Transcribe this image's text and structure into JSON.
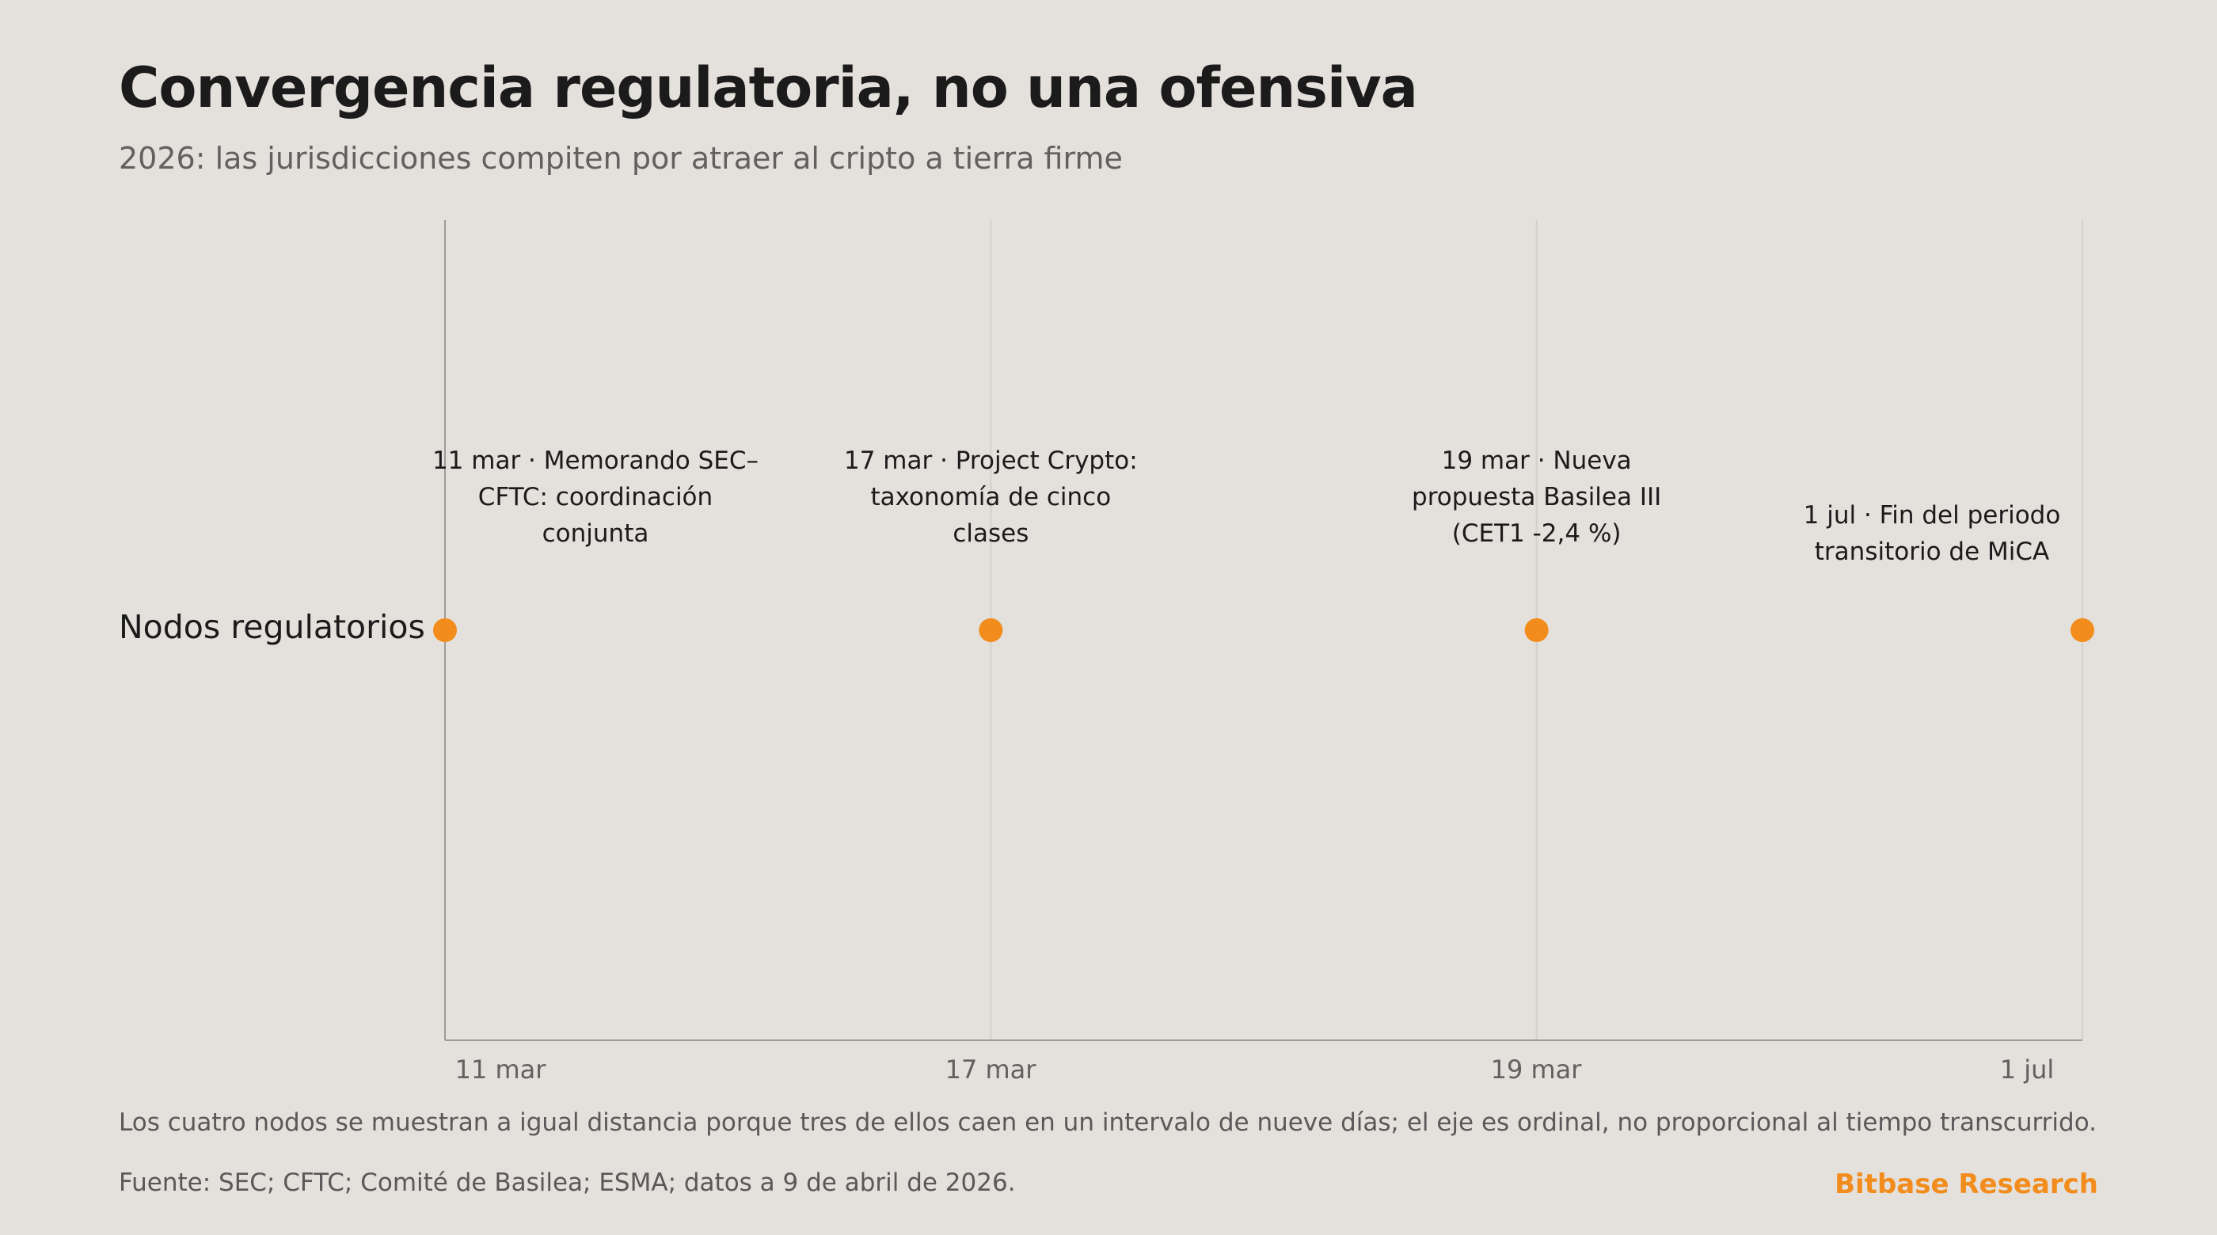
{
  "title": "Convergencia regulatoria, no una ofensiva",
  "subtitle": "2026: las jurisdicciones compiten por atraer al cripto a tierra firme",
  "note": "Los cuatro nodos se muestran a igual distancia porque tres de ellos caen en un intervalo de nueve días; el eje es ordinal, no proporcional al tiempo transcurrido.",
  "source": "Fuente: SEC; CFTC; Comité de Basilea; ESMA; datos a 9 de abril de 2026.",
  "brand": "Bitbase Research",
  "colors": {
    "accent": "#f28c1c",
    "background": "#e4e0db",
    "gridline": "#d3cfca",
    "axis": "#9e9a96"
  },
  "chart_data": {
    "type": "scatter",
    "title": "Convergencia regulatoria, no una ofensiva",
    "subtitle": "2026: las jurisdicciones compiten por atraer al cripto a tierra firme",
    "x_axis": {
      "scale": "ordinal",
      "tick_labels": [
        "11 mar",
        "17 mar",
        "19 mar",
        "1 jul"
      ]
    },
    "y_axis": {
      "categories": [
        "Nodos regulatorios"
      ]
    },
    "grid": true,
    "series": [
      {
        "category": "Nodos regulatorios",
        "points": [
          {
            "x": "11 mar",
            "label": "11 mar · Memorando SEC–CFTC: coordinación conjunta"
          },
          {
            "x": "17 mar",
            "label": "17 mar · Project Crypto: taxonomía de cinco clases"
          },
          {
            "x": "19 mar",
            "label": "19 mar · Nueva propuesta Basilea III (CET1 -2,4 %)"
          },
          {
            "x": "1 jul",
            "label": "1 jul · Fin del periodo transitorio de MiCA"
          }
        ]
      }
    ]
  }
}
